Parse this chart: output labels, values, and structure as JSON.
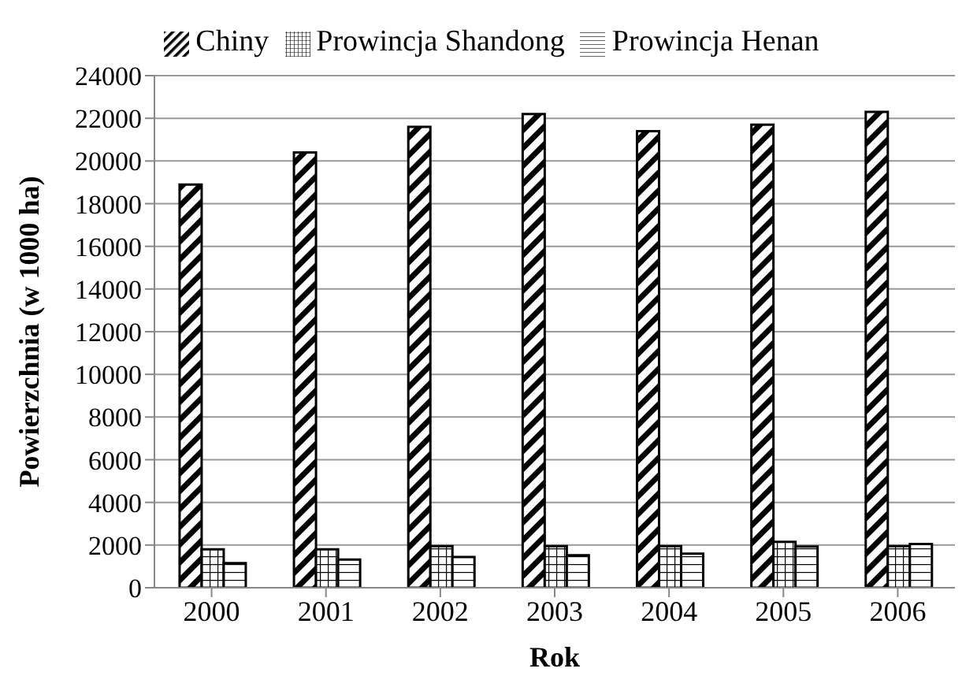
{
  "chart_data": {
    "type": "bar",
    "xlabel": "Rok",
    "ylabel": "Powierzchnia (w 1000 ha)",
    "categories": [
      "2000",
      "2001",
      "2002",
      "2003",
      "2004",
      "2005",
      "2006"
    ],
    "series": [
      {
        "name": "Chiny",
        "color": "#000000",
        "values": [
          18900,
          20400,
          21600,
          22200,
          21400,
          21700,
          22300
        ]
      },
      {
        "name": "Prowincja Shandong",
        "color": "#000000",
        "values": [
          1800,
          1800,
          1950,
          1950,
          1950,
          2150,
          1950
        ]
      },
      {
        "name": "Prowincja Henan",
        "color": "#000000",
        "values": [
          1150,
          1320,
          1440,
          1520,
          1600,
          1930,
          2050
        ]
      }
    ],
    "ylim": [
      0,
      24000
    ],
    "yticks": [
      0,
      2000,
      4000,
      6000,
      8000,
      10000,
      12000,
      14000,
      16000,
      18000,
      20000,
      22000,
      24000
    ],
    "grid": "y",
    "legend": "top"
  }
}
